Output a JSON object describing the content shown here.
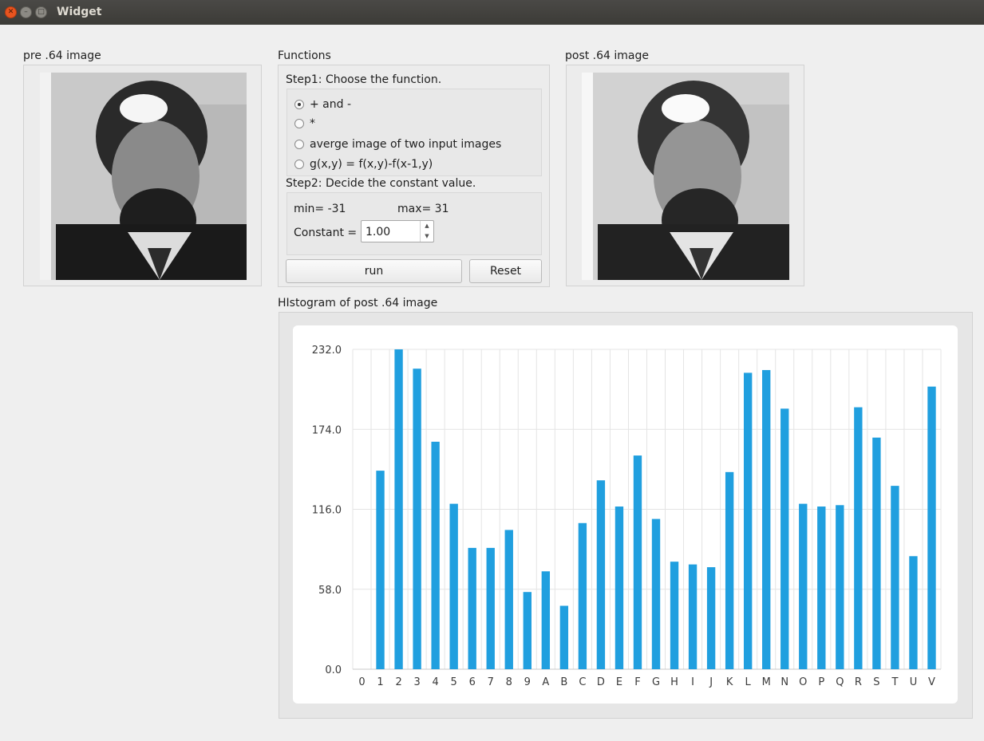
{
  "window": {
    "title": "Widget",
    "close_glyph": "✕",
    "min_glyph": "–",
    "max_glyph": "□"
  },
  "pre_image": {
    "label": "pre .64 image"
  },
  "functions": {
    "label": "Functions",
    "step1": "Step1: Choose the function.",
    "options": [
      {
        "label": "+ and -",
        "checked": true
      },
      {
        "label": "*",
        "checked": false
      },
      {
        "label": "averge image of two input images",
        "checked": false
      },
      {
        "label": "g(x,y) = f(x,y)-f(x-1,y)",
        "checked": false
      }
    ],
    "step2": "Step2: Decide the constant value.",
    "min_text": "min= -31",
    "max_text": "max= 31",
    "constant_label": "Constant =",
    "constant_value": "1.00",
    "run_label": "run",
    "reset_label": "Reset"
  },
  "post_image": {
    "label": "post .64 image"
  },
  "histogram": {
    "label": "HIstogram of post .64 image"
  },
  "chart_data": {
    "type": "bar",
    "title": "",
    "xlabel": "",
    "ylabel": "",
    "categories": [
      "0",
      "1",
      "2",
      "3",
      "4",
      "5",
      "6",
      "7",
      "8",
      "9",
      "A",
      "B",
      "C",
      "D",
      "E",
      "F",
      "G",
      "H",
      "I",
      "J",
      "K",
      "L",
      "M",
      "N",
      "O",
      "P",
      "Q",
      "R",
      "S",
      "T",
      "U",
      "V"
    ],
    "values": [
      0,
      144,
      232,
      218,
      165,
      120,
      88,
      88,
      101,
      56,
      71,
      46,
      106,
      137,
      118,
      155,
      109,
      78,
      76,
      74,
      143,
      215,
      217,
      189,
      120,
      118,
      119,
      190,
      168,
      133,
      82,
      205
    ],
    "yticks": [
      "0.0",
      "58.0",
      "116.0",
      "174.0",
      "232.0"
    ],
    "ylim": [
      0,
      232
    ],
    "grid": true,
    "color": "#209fdf"
  }
}
